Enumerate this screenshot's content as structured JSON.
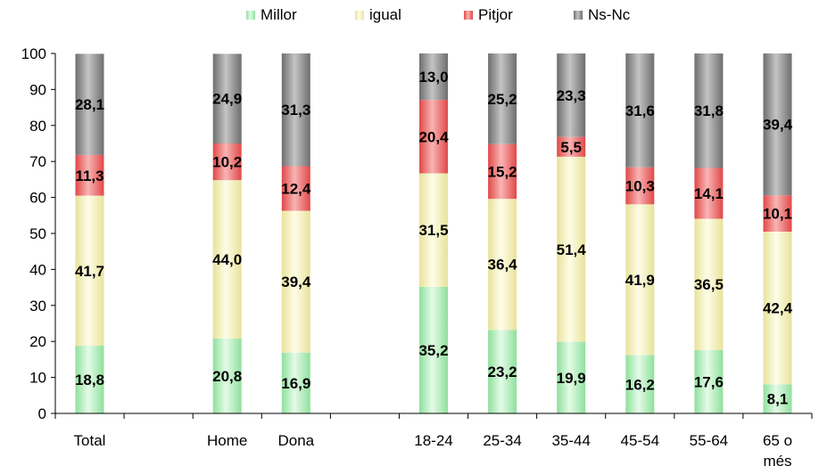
{
  "chart_data": {
    "type": "bar",
    "stacked": true,
    "categories": [
      "Total",
      "",
      "Home",
      "Dona",
      "",
      "18-24",
      "25-34",
      "35-44",
      "45-54",
      "55-64",
      "65 o més"
    ],
    "series": [
      {
        "name": "Millor",
        "color": "#b8f0c0",
        "values": [
          18.8,
          null,
          20.8,
          16.9,
          null,
          35.2,
          23.2,
          19.9,
          16.2,
          17.6,
          8.1
        ],
        "labels": [
          "18,8",
          "",
          "20,8",
          "16,9",
          "",
          "35,2",
          "23,2",
          "19,9",
          "16,2",
          "17,6",
          "8,1"
        ]
      },
      {
        "name": "igual",
        "color": "#f8f4c0",
        "values": [
          41.7,
          null,
          44.0,
          39.4,
          null,
          31.5,
          36.4,
          51.4,
          41.9,
          36.5,
          42.4
        ],
        "labels": [
          "41,7",
          "",
          "44,0",
          "39,4",
          "",
          "31,5",
          "36,4",
          "51,4",
          "41,9",
          "36,5",
          "42,4"
        ]
      },
      {
        "name": "Pitjor",
        "color": "#ec7a7a",
        "values": [
          11.3,
          null,
          10.2,
          12.4,
          null,
          20.4,
          15.2,
          5.5,
          10.3,
          14.1,
          10.1
        ],
        "labels": [
          "11,3",
          "",
          "10,2",
          "12,4",
          "",
          "20,4",
          "15,2",
          "5,5",
          "10,3",
          "14,1",
          "10,1"
        ]
      },
      {
        "name": "Ns-Nc",
        "color": "#8c8c8c",
        "values": [
          28.1,
          null,
          24.9,
          31.3,
          null,
          13.0,
          25.2,
          23.3,
          31.6,
          31.8,
          39.4
        ],
        "labels": [
          "28,1",
          "",
          "24,9",
          "31,3",
          "",
          "13,0",
          "25,2",
          "23,3",
          "31,6",
          "31,8",
          "39,4"
        ]
      }
    ],
    "ylim": [
      0,
      100
    ],
    "yticks": [
      "0",
      "10",
      "20",
      "30",
      "40",
      "50",
      "60",
      "70",
      "80",
      "90",
      "100"
    ],
    "legend_position": "top",
    "grid": false,
    "title": "",
    "xlabel": "",
    "ylabel": ""
  }
}
